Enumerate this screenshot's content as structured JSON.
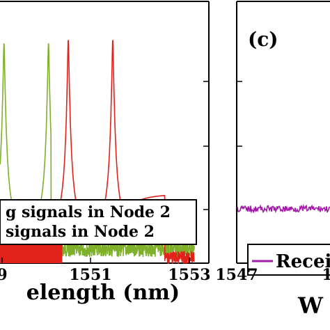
{
  "chart_data": [
    {
      "type": "line",
      "panel_label": "",
      "xlabel": "elength (nm)",
      "x_ticks": [
        "9",
        "1551",
        "1553"
      ],
      "series": [
        {
          "name": "g signals in Node 2",
          "color": "#e0221b",
          "peaks_nm": [
            1550.55,
            1551.45
          ],
          "noise_region_nm": [
            1548.75,
            1550.15
          ]
        },
        {
          "name": " signals in Node 2",
          "color": "#7fb02a",
          "peaks_nm": [
            1549.25,
            1550.15
          ],
          "noise_region_nm": [
            1550.2,
            1553.0
          ]
        }
      ],
      "legend": "bottom-center"
    },
    {
      "type": "line",
      "panel_label": "(c)",
      "xlabel": "W",
      "x_ticks": [
        "1547",
        "1"
      ],
      "series": [
        {
          "name": "Recei",
          "color": "#a21aa8"
        }
      ],
      "legend": "bottom-left"
    }
  ],
  "colors": {
    "red": "#e0221b",
    "green": "#7fb02a",
    "purple": "#a21aa8"
  }
}
